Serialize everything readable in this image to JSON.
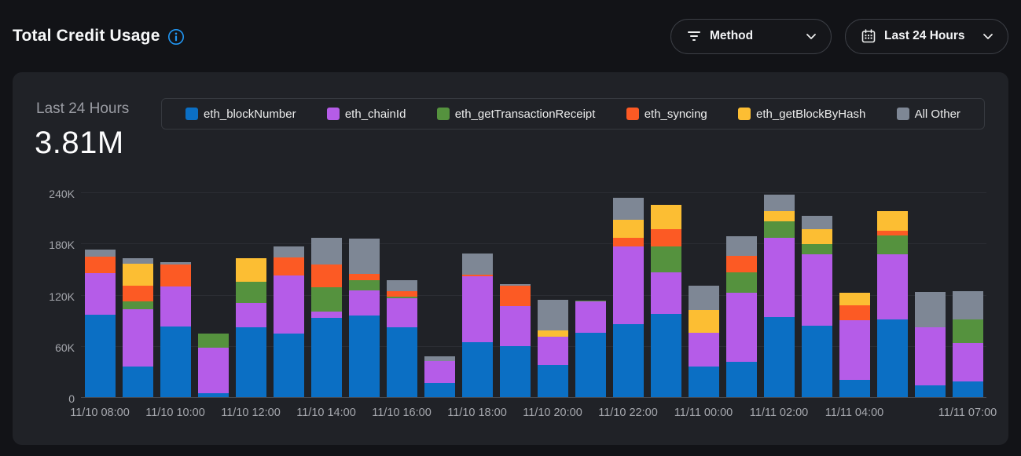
{
  "header": {
    "title": "Total Credit Usage"
  },
  "filters": {
    "method": {
      "label": "Method"
    },
    "range": {
      "label": "Last 24 Hours"
    }
  },
  "card": {
    "period_label": "Last 24 Hours",
    "total": "3.81M"
  },
  "icons": {
    "info": "info-icon",
    "filter": "filter-icon",
    "calendar": "calendar-icon",
    "chevron": "chevron-down-icon"
  },
  "colors": {
    "accent_blue": "#2196f3",
    "page_bg": "#121317",
    "card_bg": "#202227",
    "grid": "#2b2d33",
    "axis": "#474a51",
    "muted_text": "#9a9ca3"
  },
  "chart_data": {
    "type": "bar",
    "stacked": true,
    "unit": "K",
    "ylim": [
      0,
      240000
    ],
    "grid": true,
    "legend_position": "top",
    "yticks": [
      {
        "v": 0,
        "label": "0"
      },
      {
        "v": 60,
        "label": "60K"
      },
      {
        "v": 120,
        "label": "120K"
      },
      {
        "v": 180,
        "label": "180K"
      },
      {
        "v": 240,
        "label": "240K"
      }
    ],
    "categories": [
      "11/10 08:00",
      "11/10 09:00",
      "11/10 10:00",
      "11/10 11:00",
      "11/10 12:00",
      "11/10 13:00",
      "11/10 14:00",
      "11/10 15:00",
      "11/10 16:00",
      "11/10 17:00",
      "11/10 18:00",
      "11/10 19:00",
      "11/10 20:00",
      "11/10 21:00",
      "11/10 22:00",
      "11/10 23:00",
      "11/11 00:00",
      "11/11 01:00",
      "11/11 02:00",
      "11/11 03:00",
      "11/11 04:00",
      "11/11 05:00",
      "11/11 06:00",
      "11/11 07:00"
    ],
    "xticks": [
      {
        "index": 0,
        "label": "11/10 08:00"
      },
      {
        "index": 2,
        "label": "11/10 10:00"
      },
      {
        "index": 4,
        "label": "11/10 12:00"
      },
      {
        "index": 6,
        "label": "11/10 14:00"
      },
      {
        "index": 8,
        "label": "11/10 16:00"
      },
      {
        "index": 10,
        "label": "11/10 18:00"
      },
      {
        "index": 12,
        "label": "11/10 20:00"
      },
      {
        "index": 14,
        "label": "11/10 22:00"
      },
      {
        "index": 16,
        "label": "11/11 00:00"
      },
      {
        "index": 18,
        "label": "11/11 02:00"
      },
      {
        "index": 20,
        "label": "11/11 04:00"
      },
      {
        "index": 23,
        "label": "11/11 07:00"
      }
    ],
    "series": [
      {
        "name": "eth_blockNumber",
        "color": "#0b6fc4",
        "values": [
          96.5,
          35.5,
          83,
          5,
          82,
          74.5,
          93,
          95.5,
          81.5,
          16.5,
          64,
          60,
          37.5,
          75.5,
          85.5,
          97.5,
          35.5,
          41.5,
          93.5,
          83.5,
          20,
          91.5,
          14,
          18
        ]
      },
      {
        "name": "eth_chainId",
        "color": "#b55ce8",
        "values": [
          48.5,
          67.5,
          47,
          53,
          28,
          68,
          7.5,
          29.5,
          34,
          26,
          78,
          47,
          33,
          36.5,
          91,
          48.5,
          40,
          80.5,
          93.5,
          84,
          70,
          76,
          68,
          45.5
        ]
      },
      {
        "name": "eth_getTransactionReceipt",
        "color": "#55923e",
        "values": [
          0,
          9,
          0,
          16.5,
          25.5,
          0,
          28.5,
          12,
          2,
          0,
          0,
          0,
          0,
          1,
          0,
          30.5,
          0,
          24,
          19,
          12,
          0,
          22,
          0,
          27.5
        ]
      },
      {
        "name": "eth_syncing",
        "color": "#fc5a24",
        "values": [
          20,
          18.5,
          25,
          0,
          0,
          21,
          26,
          7,
          6.5,
          0,
          1.5,
          23.5,
          0,
          0,
          10,
          20,
          0,
          20,
          0,
          0,
          18,
          6,
          0,
          0
        ]
      },
      {
        "name": "eth_getBlockByHash",
        "color": "#fcbe33",
        "values": [
          0,
          25.5,
          0,
          0,
          27,
          0,
          0,
          0,
          0,
          0,
          0,
          0,
          7.5,
          0,
          21,
          28.5,
          27,
          0,
          11.5,
          17.5,
          14,
          23,
          0,
          0
        ]
      },
      {
        "name": "All Other",
        "color": "#7e8795",
        "values": [
          7.5,
          7,
          3.5,
          0,
          0,
          13.5,
          32,
          42,
          13,
          5.5,
          24.5,
          2,
          36,
          0,
          26,
          0,
          28,
          23,
          19.5,
          15.5,
          0,
          0,
          41.5,
          33.5
        ]
      }
    ],
    "title": "Total Credit Usage",
    "subtitle": "Last 24 Hours",
    "total_label": "3.81M"
  }
}
